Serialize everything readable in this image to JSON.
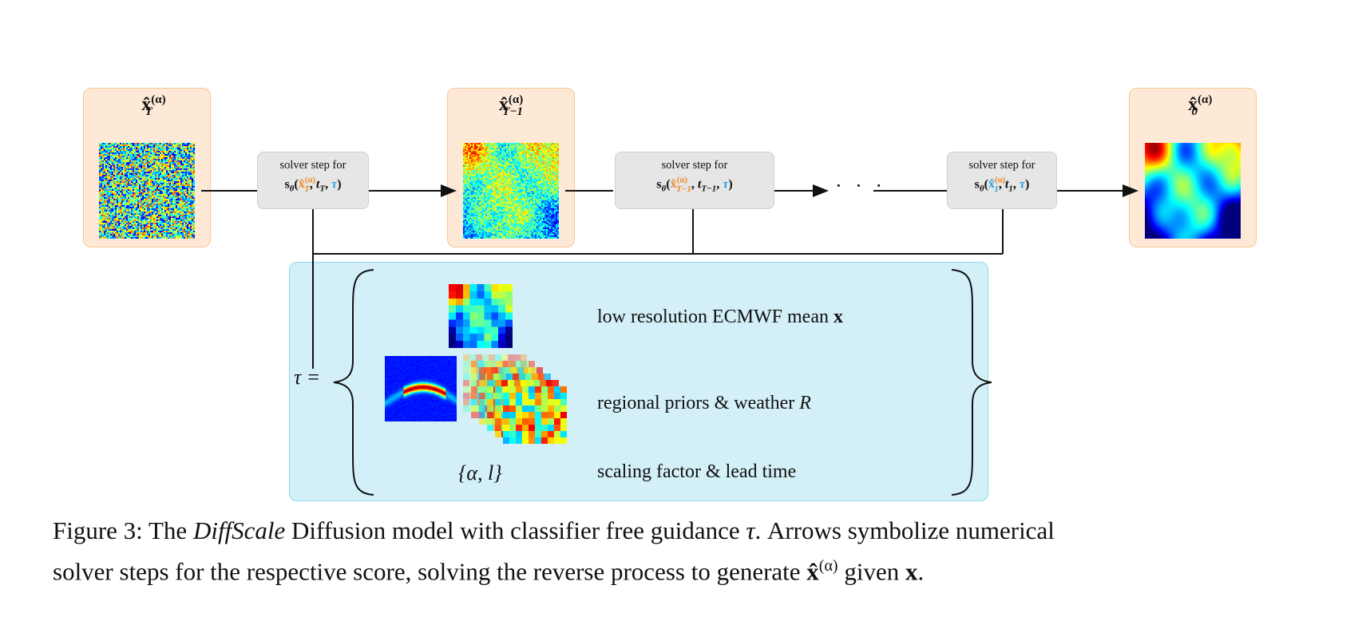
{
  "states": [
    {
      "id": "xT",
      "base": "x̂",
      "sup": "(α)",
      "sub": "T"
    },
    {
      "id": "xTm1",
      "base": "x̂",
      "sup": "(α)",
      "sub": "T−1"
    },
    {
      "id": "x0",
      "base": "x̂",
      "sup": "(α)",
      "sub": "0"
    }
  ],
  "solver_steps": [
    {
      "head": "solver step for",
      "func": "s",
      "theta": "θ",
      "arg_base": "x̂",
      "arg_sup": "(α)",
      "arg_sub": "T",
      "time": "t",
      "time_sub": "T",
      "guidance": "τ"
    },
    {
      "head": "solver step for",
      "func": "s",
      "theta": "θ",
      "arg_base": "x̂",
      "arg_sup": "(α)",
      "arg_sub": "T−1",
      "time": "t",
      "time_sub": "T−1",
      "guidance": "τ"
    },
    {
      "head": "solver step for",
      "func": "s",
      "theta": "θ",
      "arg_base": "x̂",
      "arg_sup": "(α)",
      "arg_sub": "1",
      "time": "t",
      "time_sub": "1",
      "guidance": "τ"
    }
  ],
  "ellipsis": "· · ·",
  "guidance": {
    "lhs": "τ =",
    "items": [
      {
        "text": "low resolution ECMWF mean ",
        "math": "x"
      },
      {
        "text": "regional priors & weather ",
        "math": "R"
      },
      {
        "text": "scaling factor & lead time",
        "math": ""
      }
    ],
    "param_set": "{α, l}"
  },
  "caption": {
    "line1_a": "Figure 3: The ",
    "line1_em": "DiffScale",
    "line1_b": " Diffusion model with classifier free guidance ",
    "line1_tau": "τ",
    "line1_c": ". Arrows symbolize numerical",
    "line2_a": "solver steps for the respective score, solving the reverse process to generate ",
    "line2_x": "x̂",
    "line2_sup": "(α)",
    "line2_b": " given ",
    "line2_bx": "x",
    "line2_c": "."
  },
  "colors": {
    "state_fill": "#fde9d6",
    "state_border": "#f7c796",
    "solver_fill": "#e6e6e6",
    "guidance_fill": "#d3f0f8",
    "accent_orange": "#f08a24",
    "accent_blue": "#2aa4e0"
  }
}
